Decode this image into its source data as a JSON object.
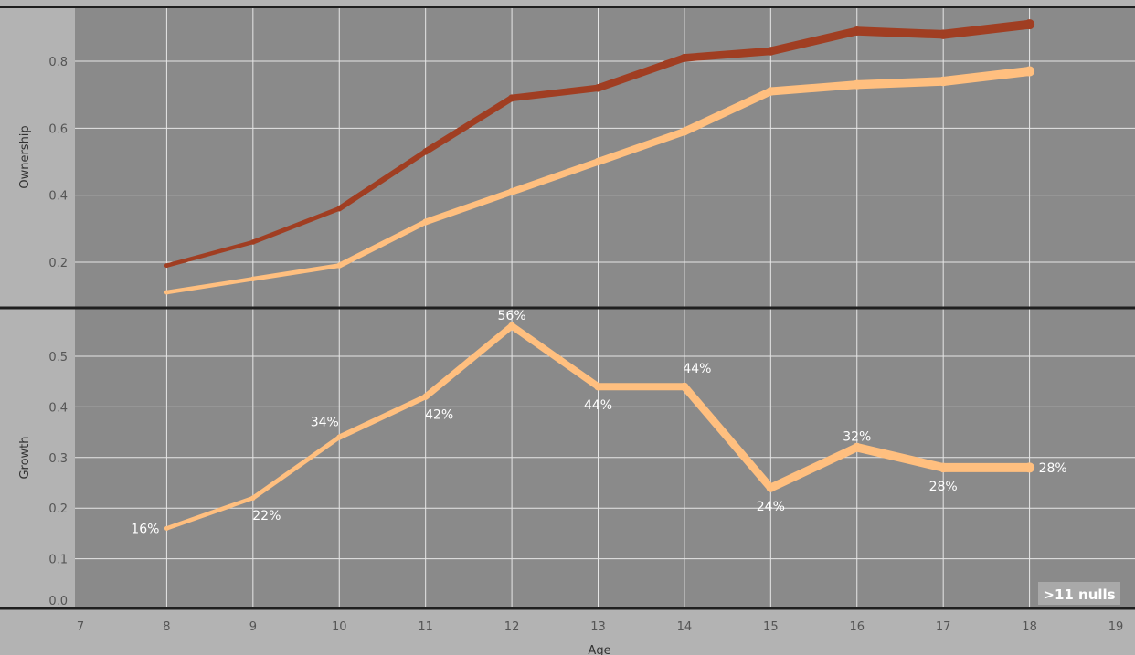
{
  "colors": {
    "page_bg": "#b3b3b3",
    "plot_bg": "#8a8a8a",
    "grid": "#e6e6e6",
    "divider": "#1f1f1f",
    "series_dark": "#a03e22",
    "series_light": "#ffbf7f",
    "label": "#ffffff",
    "tick": "#555555"
  },
  "chart_data": [
    {
      "type": "line",
      "panel": "top",
      "title": "",
      "xlabel": "",
      "ylabel": "Ownership",
      "ylim": [
        0.1,
        0.95
      ],
      "yticks": [
        0.2,
        0.4,
        0.6,
        0.8
      ],
      "grid": true,
      "x": [
        8,
        9,
        10,
        11,
        12,
        13,
        14,
        15,
        16,
        17,
        18
      ],
      "series": [
        {
          "color": "#a03e22",
          "values": [
            0.19,
            0.26,
            0.36,
            0.53,
            0.69,
            0.72,
            0.81,
            0.83,
            0.89,
            0.88,
            0.91
          ],
          "widths": [
            4,
            4.5,
            5,
            6,
            7,
            7.5,
            8,
            8.5,
            9,
            9.5,
            10
          ]
        },
        {
          "color": "#ffbf7f",
          "values": [
            0.11,
            0.15,
            0.19,
            0.32,
            0.41,
            0.5,
            0.59,
            0.71,
            0.73,
            0.74,
            0.77
          ],
          "widths": [
            4,
            4.5,
            5,
            6,
            7,
            7.5,
            8,
            8.5,
            9,
            9.5,
            10
          ]
        }
      ]
    },
    {
      "type": "line",
      "panel": "bottom",
      "title": "",
      "xlabel": "Age",
      "ylabel": "Growth",
      "ylim": [
        0,
        0.58
      ],
      "yticks": [
        0.0,
        0.1,
        0.2,
        0.3,
        0.4,
        0.5
      ],
      "ytick_labels": [
        "0.0",
        "0.1",
        "0.2",
        "0.3",
        "0.4",
        "0.5"
      ],
      "xlim": [
        7,
        19
      ],
      "xticks": [
        7,
        8,
        9,
        10,
        11,
        12,
        13,
        14,
        15,
        16,
        17,
        18,
        19
      ],
      "grid": true,
      "x": [
        8,
        9,
        10,
        11,
        12,
        13,
        14,
        15,
        16,
        17,
        18
      ],
      "series": [
        {
          "color": "#ffbf7f",
          "values": [
            0.16,
            0.22,
            0.34,
            0.42,
            0.56,
            0.44,
            0.44,
            0.24,
            0.32,
            0.28,
            0.28
          ],
          "widths": [
            4,
            4.5,
            5,
            6,
            7,
            7.5,
            8,
            8.5,
            9,
            9.5,
            10
          ]
        }
      ],
      "data_labels": [
        {
          "x": 8,
          "text": "16%",
          "pos": "left"
        },
        {
          "x": 9,
          "text": "22%",
          "pos": "below-right"
        },
        {
          "x": 10,
          "text": "34%",
          "pos": "above-left"
        },
        {
          "x": 11,
          "text": "42%",
          "pos": "below-right"
        },
        {
          "x": 12,
          "text": "56%",
          "pos": "above"
        },
        {
          "x": 13,
          "text": "44%",
          "pos": "below"
        },
        {
          "x": 14,
          "text": "44%",
          "pos": "above-right"
        },
        {
          "x": 15,
          "text": "24%",
          "pos": "below"
        },
        {
          "x": 16,
          "text": "32%",
          "pos": "above"
        },
        {
          "x": 17,
          "text": "28%",
          "pos": "below"
        },
        {
          "x": 18,
          "text": "28%",
          "pos": "right"
        }
      ]
    }
  ],
  "nulls_indicator": {
    "label": ">11 nulls"
  }
}
